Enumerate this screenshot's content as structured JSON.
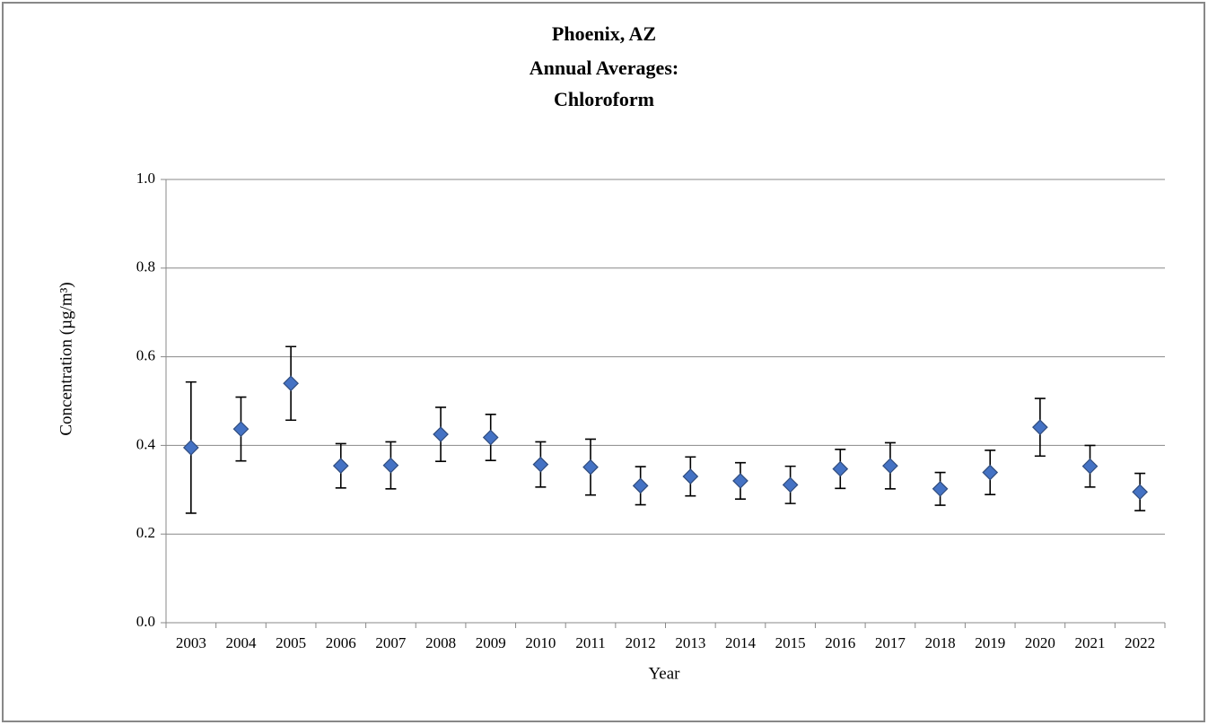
{
  "chart_data": {
    "type": "errorbar",
    "title": [
      "Phoenix, AZ",
      "Annual Averages:",
      "Chloroform"
    ],
    "x_label": "Year",
    "y_label": "Concentration (µg/m³)",
    "categories": [
      "2003",
      "2004",
      "2005",
      "2006",
      "2007",
      "2008",
      "2009",
      "2010",
      "2011",
      "2012",
      "2013",
      "2014",
      "2015",
      "2016",
      "2017",
      "2018",
      "2019",
      "2020",
      "2021",
      "2022"
    ],
    "series": [
      {
        "name": "Chloroform",
        "color": "#4472c4",
        "values": [
          0.395,
          0.437,
          0.54,
          0.354,
          0.355,
          0.425,
          0.418,
          0.357,
          0.351,
          0.309,
          0.33,
          0.32,
          0.311,
          0.347,
          0.354,
          0.302,
          0.339,
          0.441,
          0.353,
          0.295
        ],
        "errors": [
          0.148,
          0.072,
          0.083,
          0.05,
          0.053,
          0.061,
          0.052,
          0.051,
          0.063,
          0.043,
          0.044,
          0.041,
          0.042,
          0.044,
          0.052,
          0.037,
          0.05,
          0.065,
          0.047,
          0.042
        ]
      }
    ],
    "ylim": [
      0,
      1
    ],
    "yticks": [
      {
        "value": 0,
        "label": "0.0"
      },
      0.2,
      0.4,
      0.6,
      0.8,
      {
        "value": 1,
        "label": "1.0"
      }
    ],
    "grid": true
  }
}
